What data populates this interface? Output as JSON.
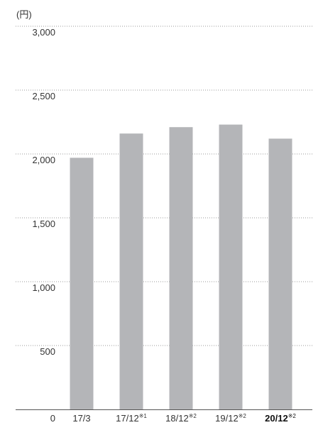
{
  "chart_data": {
    "type": "bar",
    "unit_label": "(円)",
    "categories": [
      "17/3",
      "17/12",
      "18/12",
      "19/12",
      "20/12"
    ],
    "category_notes": [
      "",
      "※1",
      "※2",
      "※2",
      "※2"
    ],
    "highlight_category": "20/12",
    "values": [
      1970,
      2160,
      2210,
      2230,
      2120
    ],
    "ylim": [
      0,
      3000
    ],
    "yticks": [
      0,
      500,
      1000,
      1500,
      2000,
      2500,
      3000
    ],
    "ytick_labels": [
      "0",
      "500",
      "1,000",
      "1,500",
      "2,000",
      "2,500",
      "3,000"
    ],
    "grid": true,
    "grid_style": "dotted",
    "bar_color": "#b4b5b8",
    "grid_color": "#9a9a9a",
    "axis_color": "#555555"
  }
}
